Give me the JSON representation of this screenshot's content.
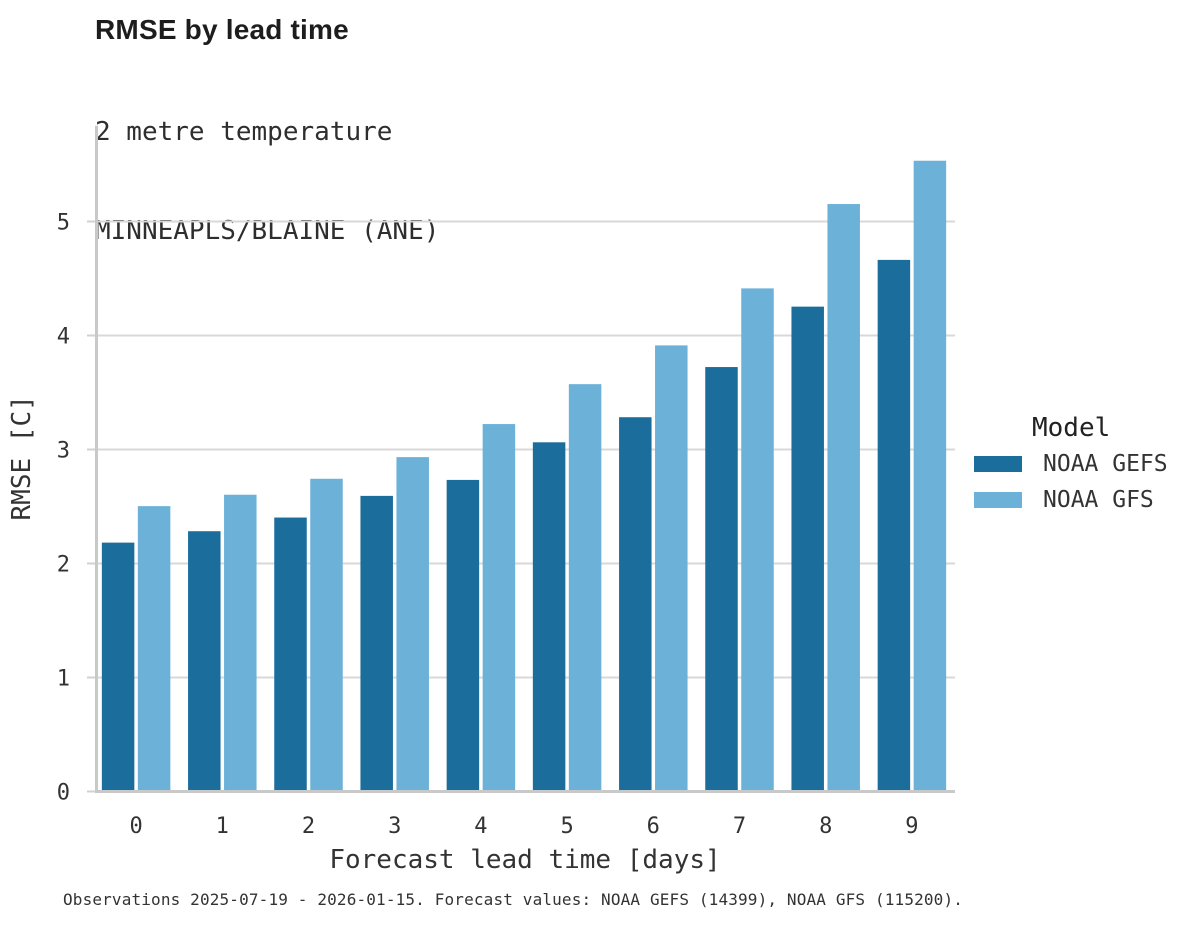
{
  "header": {
    "title": "RMSE by lead time",
    "subtitle_line1": "2 metre temperature",
    "subtitle_line2": "MINNEAPLS/BLAINE (ANE)"
  },
  "caption": "Observations 2025-07-19 - 2026-01-15. Forecast values: NOAA GEFS (14399), NOAA GFS (115200).",
  "chart_data": {
    "type": "bar",
    "title": "RMSE by lead time",
    "subtitle": [
      "2 metre temperature",
      "MINNEAPLS/BLAINE (ANE)"
    ],
    "categories": [
      "0",
      "1",
      "2",
      "3",
      "4",
      "5",
      "6",
      "7",
      "8",
      "9"
    ],
    "series": [
      {
        "name": "NOAA GEFS",
        "color": "#1b6d9b",
        "values": [
          2.17,
          2.27,
          2.39,
          2.58,
          2.72,
          3.05,
          3.27,
          3.71,
          4.24,
          4.65
        ]
      },
      {
        "name": "NOAA GFS",
        "color": "#6cb1d8",
        "values": [
          2.49,
          2.59,
          2.73,
          2.92,
          3.21,
          3.56,
          3.9,
          4.4,
          5.14,
          5.52
        ]
      }
    ],
    "xlabel": "Forecast lead time [days]",
    "ylabel": "RMSE [C]",
    "ylim": [
      0,
      5.84
    ],
    "yticks": [
      0,
      1,
      2,
      3,
      4,
      5
    ],
    "grid": "horizontal",
    "legend_title": "Model",
    "legend_position": "right-center",
    "colors": {
      "grid": "#d8d8d8",
      "spine": "#c9c9c9",
      "tick_mark": "#d2d2d2",
      "tick_text": "#333333",
      "axis_label_text": "#333333"
    }
  }
}
